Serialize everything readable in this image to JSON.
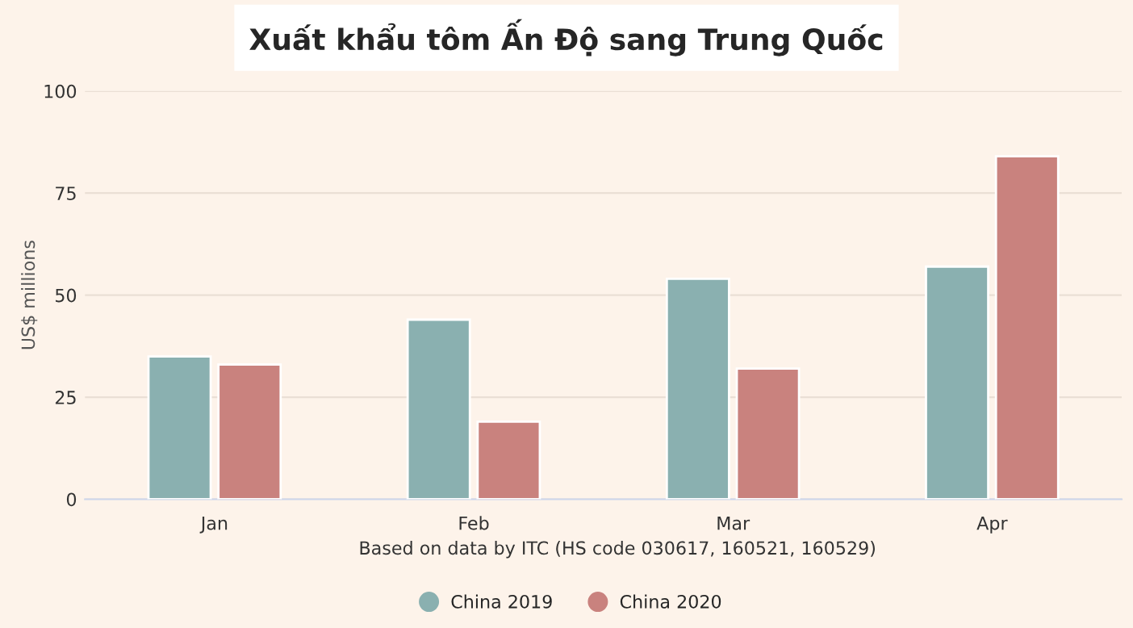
{
  "chart_data": {
    "type": "bar",
    "title": "Xuất khẩu tôm Ấn Độ sang Trung Quốc",
    "ylabel": "US$ millions",
    "categories": [
      "Jan",
      "Feb",
      "Mar",
      "Apr"
    ],
    "series": [
      {
        "name": "China 2019",
        "color": "#8ab0b0",
        "values": [
          35,
          44,
          54,
          57
        ]
      },
      {
        "name": "China 2020",
        "color": "#c9827e",
        "values": [
          33,
          19,
          32,
          84
        ]
      }
    ],
    "ylim": [
      0,
      100
    ],
    "yticks": [
      0,
      25,
      50,
      75,
      100
    ],
    "grid": "y",
    "legend": "bottom",
    "annotations": [
      "Based on data by ITC (HS code 030617, 160521, 160529)"
    ]
  }
}
